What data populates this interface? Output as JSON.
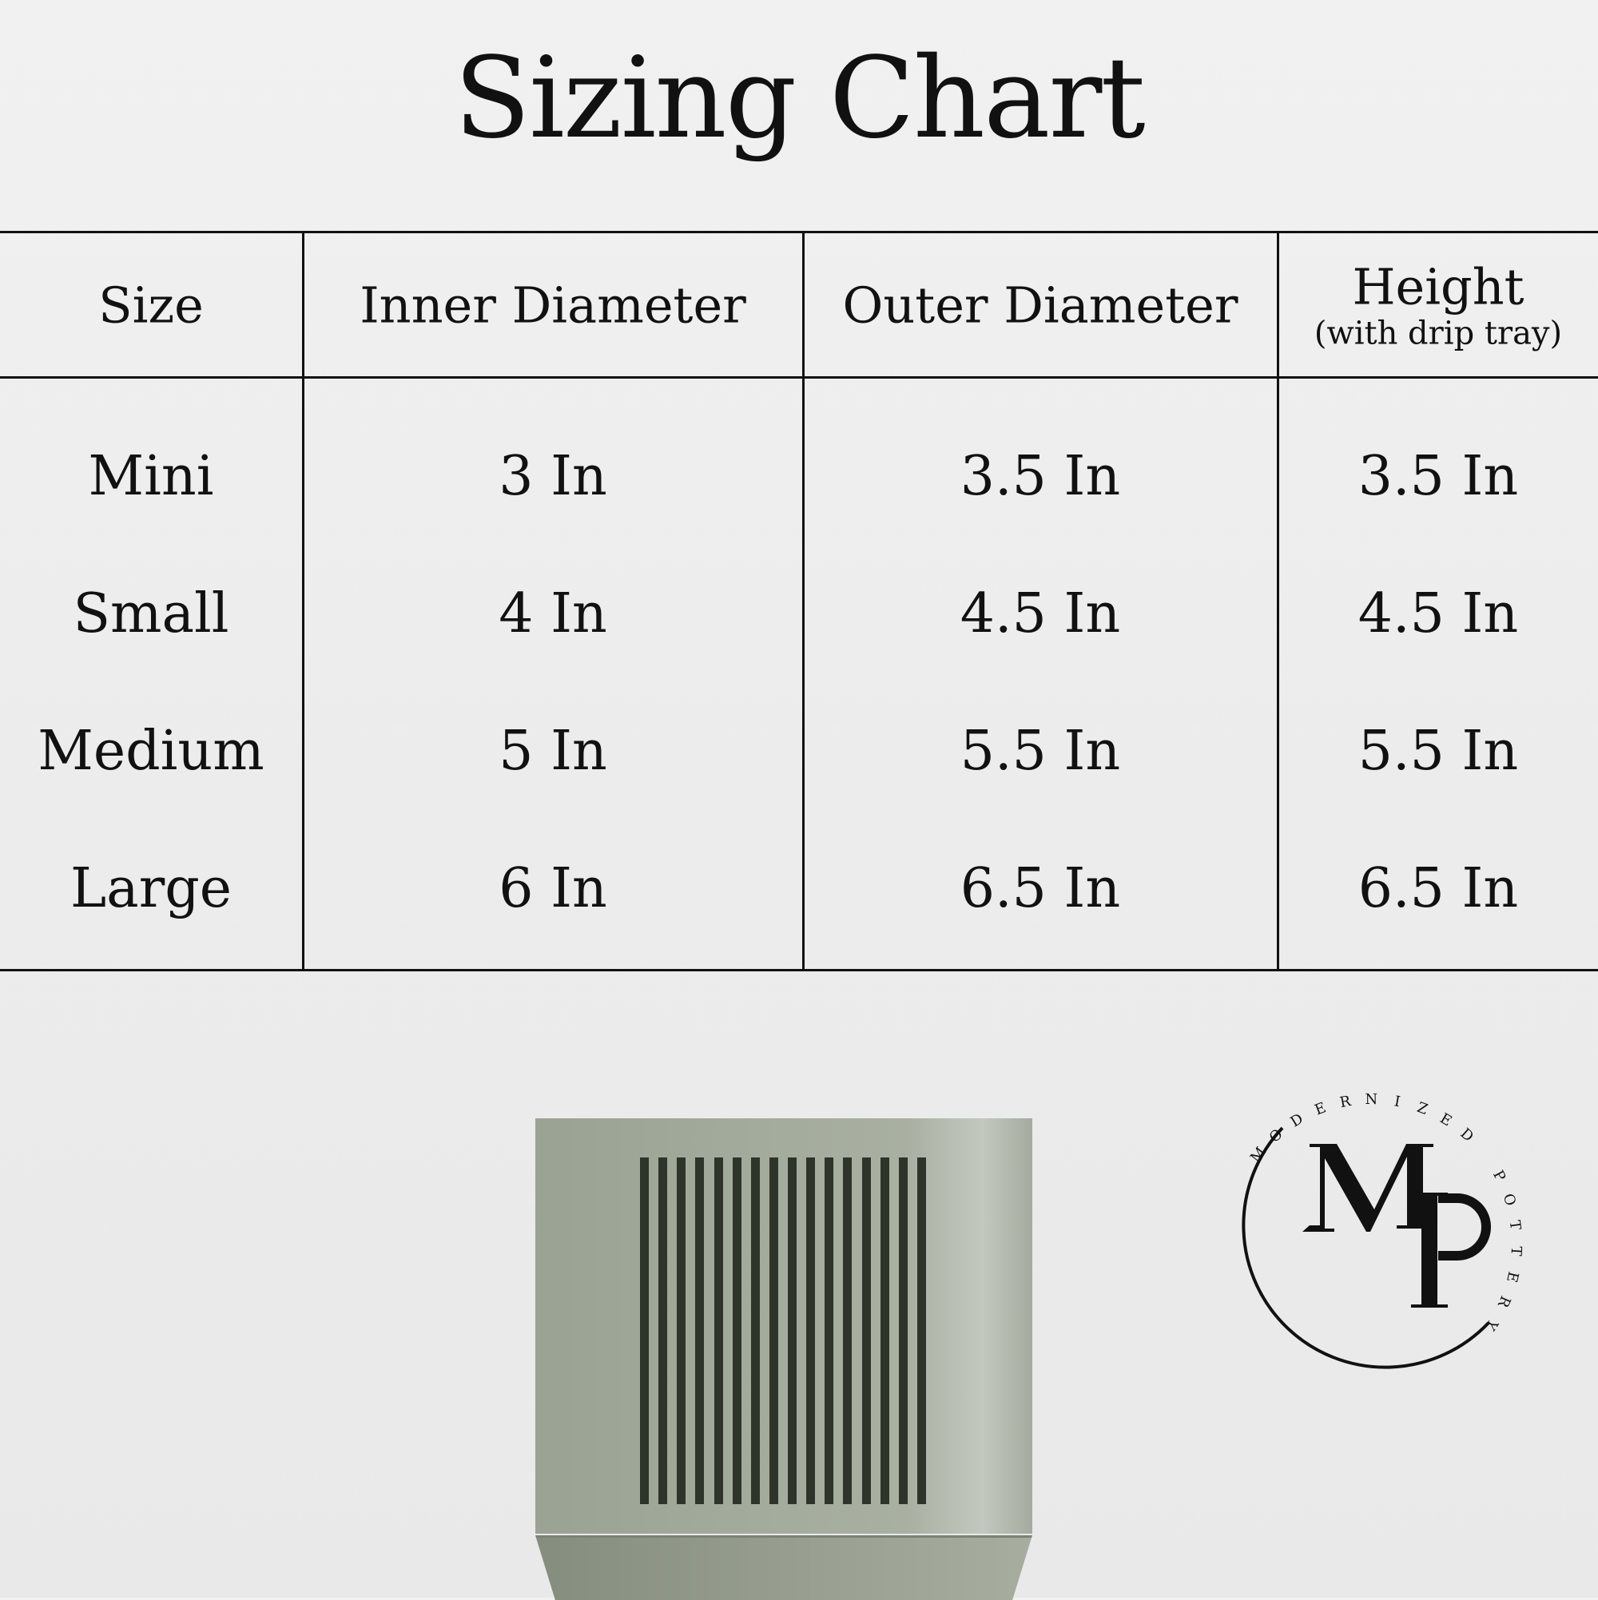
{
  "title": "Sizing Chart",
  "table": {
    "headers": [
      {
        "label": "Size"
      },
      {
        "label": "Inner Diameter"
      },
      {
        "label": "Outer Diameter"
      },
      {
        "label": "Height",
        "sublabel": "(with drip tray)"
      }
    ],
    "rows": [
      [
        "Mini",
        "3 In",
        "3.5 In",
        "3.5 In"
      ],
      [
        "Small",
        "4 In",
        "4.5 In",
        "4.5 In"
      ],
      [
        "Medium",
        "5 In",
        "5.5 In",
        "5.5 In"
      ],
      [
        "Large",
        "6 In",
        "6.5 In",
        "6.5 In"
      ]
    ]
  },
  "logo": {
    "monogram": "MP",
    "ring_text": "MODERNIZED POTTERY"
  },
  "colors": {
    "pot": "#a3ab9c",
    "slots": "#2f342a",
    "ink": "#111111"
  }
}
